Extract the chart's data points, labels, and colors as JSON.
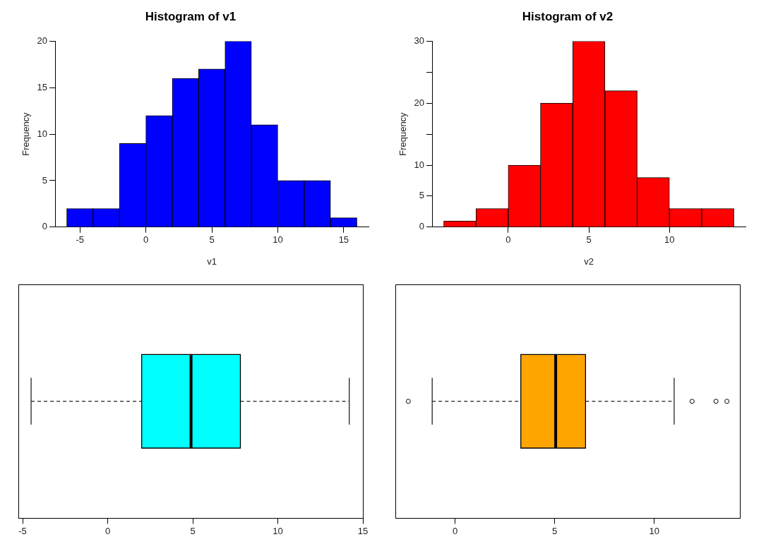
{
  "chart_data": [
    {
      "type": "histogram",
      "title": "Histogram of v1",
      "xlabel": "v1",
      "ylabel": "Frequency",
      "bins": [
        -6,
        -4,
        -2,
        0,
        2,
        4,
        6,
        8,
        10,
        12,
        14,
        16
      ],
      "values": [
        2,
        2,
        9,
        12,
        16,
        17,
        20,
        11,
        5,
        5,
        1
      ],
      "color": "#0000ff",
      "xlim": [
        -6.88,
        16.88
      ],
      "ylim": [
        0,
        20
      ],
      "xticks": [
        -5,
        0,
        5,
        10,
        15
      ],
      "yticks": [
        0,
        5,
        10,
        15,
        20
      ]
    },
    {
      "type": "histogram",
      "title": "Histogram of v2",
      "xlabel": "v2",
      "ylabel": "Frequency",
      "bins": [
        -4,
        -2,
        0,
        2,
        4,
        6,
        8,
        10,
        12,
        14
      ],
      "values": [
        1,
        3,
        10,
        20,
        30,
        22,
        8,
        3,
        3
      ],
      "color": "#ff0000",
      "xlim": [
        -4.72,
        14.72
      ],
      "ylim": [
        0,
        30
      ],
      "xticks": [
        0,
        5,
        10
      ],
      "yticks": [
        0,
        5,
        10,
        {
          "value": 15,
          "label": null
        },
        20,
        {
          "value": 25,
          "label": null
        },
        30
      ]
    },
    {
      "type": "box",
      "orientation": "horizontal",
      "categories": [
        null
      ],
      "color": "#00ffff",
      "boxes": [
        {
          "low": -4.5,
          "q1": 2.0,
          "median": 4.9,
          "q3": 7.8,
          "high": 14.2
        }
      ],
      "xlim": [
        -5.25,
        15
      ],
      "xticks": [
        -5,
        0,
        5,
        10,
        15
      ]
    },
    {
      "type": "box",
      "orientation": "horizontal",
      "categories": [
        null
      ],
      "color": "#ffa500",
      "boxes": [
        {
          "low": -1.15,
          "q1": 3.3,
          "median": 5.05,
          "q3": 6.55,
          "high": 11.0,
          "outliers": [
            -2.35,
            11.9,
            13.1,
            13.65
          ]
        }
      ],
      "xlim": [
        -3,
        14.3
      ],
      "xticks": [
        0,
        5,
        10
      ]
    }
  ]
}
